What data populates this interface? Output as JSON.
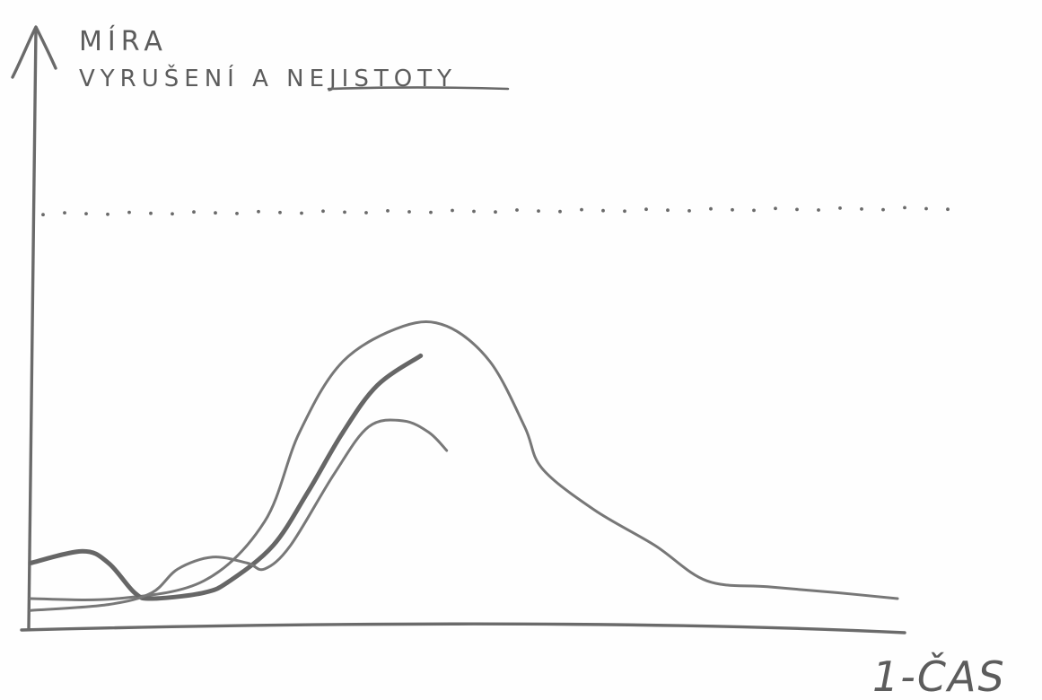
{
  "chart_data": {
    "type": "line",
    "title": "",
    "ylabel_lines": [
      "MÍRA",
      "VYRUŠENÍ A NEJISTOTY"
    ],
    "ylabel_underlined_word": "NEJISTOTY",
    "xlabel": "1-ČAS",
    "xlim": [
      0,
      100
    ],
    "ylim": [
      0,
      100
    ],
    "grid": false,
    "legend": "none",
    "threshold_line": {
      "y": 70,
      "style": "dotted"
    },
    "series": [
      {
        "color": "#777777",
        "stroke": "thin",
        "points": [
          [
            0,
            5
          ],
          [
            10,
            5
          ],
          [
            20,
            8
          ],
          [
            27,
            18
          ],
          [
            31,
            33
          ],
          [
            36,
            45
          ],
          [
            43,
            51
          ],
          [
            48,
            51
          ],
          [
            53,
            45
          ],
          [
            57,
            34
          ],
          [
            59,
            27
          ],
          [
            65,
            20
          ],
          [
            72,
            14
          ],
          [
            78,
            8
          ],
          [
            85,
            7
          ],
          [
            93,
            6
          ],
          [
            100,
            5
          ]
        ]
      },
      {
        "color": "#666666",
        "stroke": "thick",
        "points": [
          [
            0,
            11
          ],
          [
            6,
            13
          ],
          [
            9,
            11
          ],
          [
            12,
            6
          ],
          [
            14,
            5
          ],
          [
            20,
            6
          ],
          [
            23,
            8
          ],
          [
            28,
            14
          ],
          [
            32,
            23
          ],
          [
            36,
            33
          ],
          [
            40,
            41
          ],
          [
            45,
            46
          ]
        ]
      },
      {
        "color": "#787878",
        "stroke": "thin",
        "points": [
          [
            0,
            3
          ],
          [
            9,
            4
          ],
          [
            14,
            6
          ],
          [
            17,
            10
          ],
          [
            21,
            12
          ],
          [
            25,
            11
          ],
          [
            27,
            10
          ],
          [
            30,
            14
          ],
          [
            35,
            26
          ],
          [
            39,
            34
          ],
          [
            43,
            35
          ],
          [
            46,
            33
          ],
          [
            48,
            30
          ]
        ]
      }
    ]
  }
}
